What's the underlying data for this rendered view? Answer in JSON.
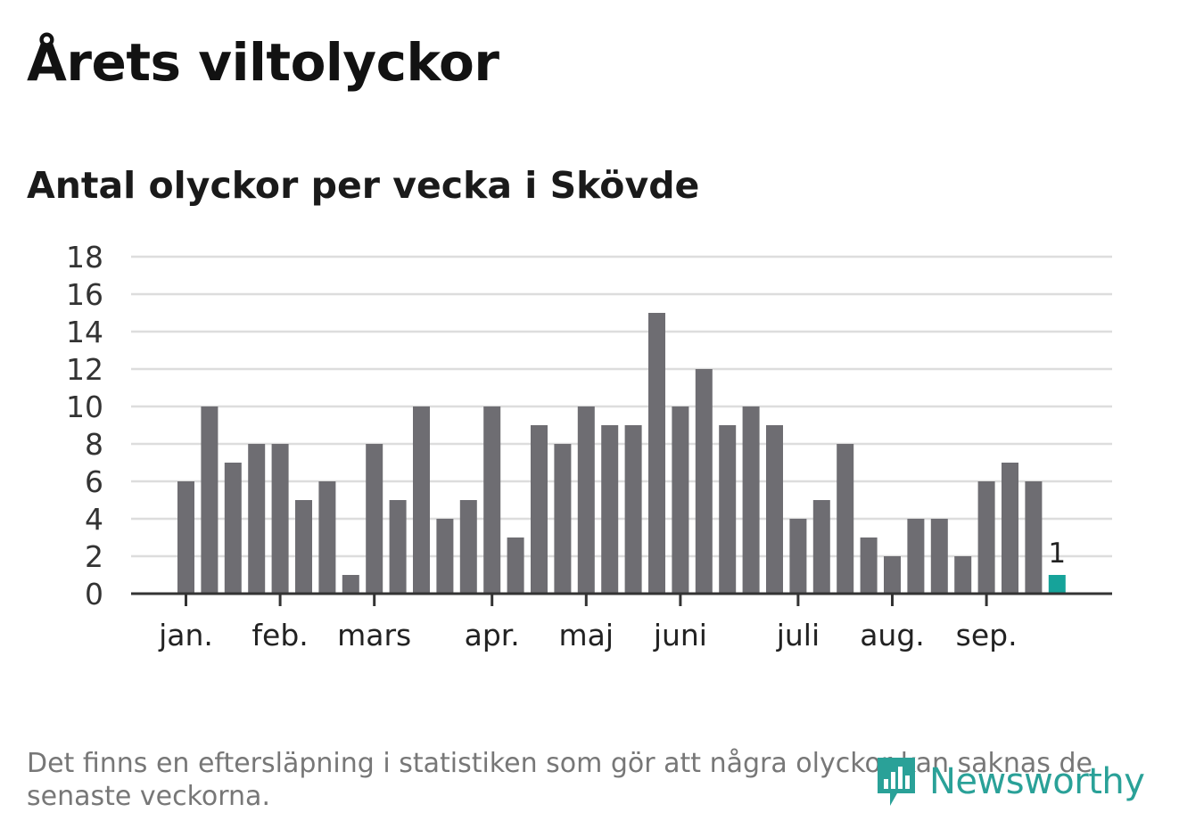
{
  "title": "Årets viltolyckor",
  "subtitle": "Antal olyckor per vecka i Skövde",
  "note": "Det finns en eftersläpning i statistiken som gör att några olyckor kan saknas de senaste veckorna.",
  "logo": {
    "text": "Newsworthy",
    "icon": "newsworthy-bars-icon"
  },
  "colors": {
    "bar": "#6e6d72",
    "highlight": "#16a39a",
    "grid": "#dddddd",
    "axis": "#333333"
  },
  "chart_data": {
    "type": "bar",
    "x": [
      1,
      2,
      3,
      4,
      5,
      6,
      7,
      8,
      9,
      10,
      11,
      12,
      13,
      14,
      15,
      16,
      17,
      18,
      19,
      20,
      21,
      22,
      23,
      24,
      25,
      26,
      27,
      28,
      29,
      30,
      31,
      32,
      33,
      34,
      35,
      36,
      37,
      38
    ],
    "values": [
      6,
      10,
      7,
      8,
      8,
      5,
      6,
      1,
      8,
      5,
      10,
      4,
      5,
      10,
      3,
      9,
      8,
      10,
      9,
      9,
      15,
      10,
      12,
      9,
      10,
      9,
      4,
      5,
      8,
      3,
      2,
      4,
      4,
      2,
      6,
      7,
      6,
      1
    ],
    "highlight_last": true,
    "data_labels": [
      {
        "index": 37,
        "text": "1"
      }
    ],
    "month_ticks": [
      {
        "label": "jan.",
        "x": 1
      },
      {
        "label": "feb.",
        "x": 5
      },
      {
        "label": "mars",
        "x": 9
      },
      {
        "label": "apr.",
        "x": 14
      },
      {
        "label": "maj",
        "x": 18
      },
      {
        "label": "juni",
        "x": 22
      },
      {
        "label": "juli",
        "x": 27
      },
      {
        "label": "aug.",
        "x": 31
      },
      {
        "label": "sep.",
        "x": 35
      }
    ],
    "yticks": [
      0,
      2,
      4,
      6,
      8,
      10,
      12,
      14,
      16,
      18
    ],
    "ylim": [
      0,
      18
    ],
    "grid": true
  }
}
